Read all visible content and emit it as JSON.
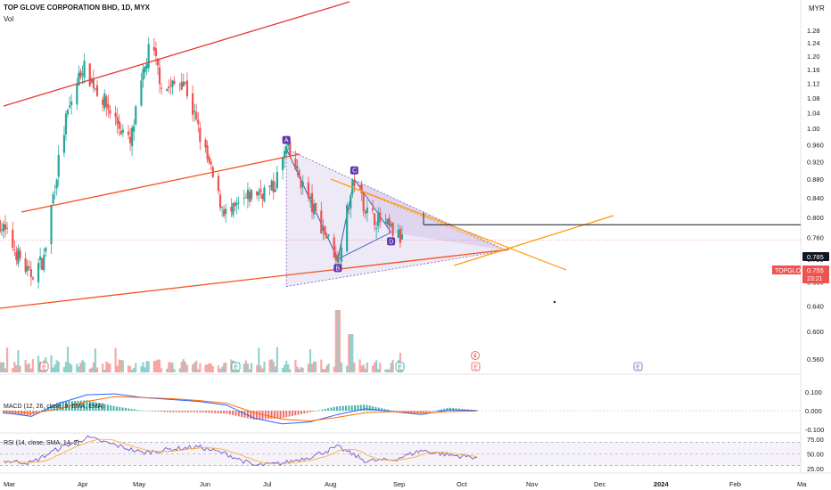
{
  "header": {
    "title": "TOP GLOVE CORPORATION BHD, 1D, MYX",
    "vol_label": "Vol",
    "currency": "MYR"
  },
  "price_tag": {
    "symbol": "TOPGLOV",
    "price": "0.755",
    "countdown": "23:21",
    "line_value": "0.785"
  },
  "pattern_labels": [
    "A",
    "B",
    "C",
    "D"
  ],
  "event_markers": [
    "E",
    "E",
    "E",
    "E",
    "E"
  ],
  "colors": {
    "up": "#26a69a",
    "down": "#ef5350",
    "channel": "#e53935",
    "orange": "#ff9800",
    "pattern_fill": "#b39ddb",
    "pattern_line": "#7e57c2",
    "macd": "#2962ff",
    "signal": "#ff6d00",
    "rsi": "#7e57c2"
  },
  "chart_data": [
    {
      "type": "candlestick",
      "title": "TOP GLOVE CORPORATION BHD, 1D, MYX",
      "x_ticks": [
        "Mar",
        "Apr",
        "May",
        "Jun",
        "Jul",
        "Aug",
        "Sep",
        "Oct",
        "Nov",
        "Dec",
        "2024",
        "Feb",
        "Ma"
      ],
      "y_ticks": [
        "0.560",
        "0.600",
        "0.640",
        "0.680",
        "0.720",
        "0.760",
        "0.800",
        "0.840",
        "0.880",
        "0.920",
        "0.960",
        "1.00",
        "1.04",
        "1.08",
        "1.12",
        "1.16",
        "1.20",
        "1.24",
        "1.28"
      ],
      "ylim": [
        0.54,
        1.3
      ],
      "y_scale": "log",
      "last_price": 0.755,
      "key_points": [
        {
          "date": "Feb 24",
          "close": 0.8
        },
        {
          "date": "Mar 14",
          "close": 0.69
        },
        {
          "date": "Mar 22",
          "close": 0.72
        },
        {
          "date": "Apr 3",
          "close": 1.02
        },
        {
          "date": "Apr 12",
          "close": 1.17
        },
        {
          "date": "Apr 25",
          "close": 1.06
        },
        {
          "date": "May 8",
          "close": 0.96
        },
        {
          "date": "May 19",
          "close": 1.24
        },
        {
          "date": "May 26",
          "close": 1.1
        },
        {
          "date": "Jun 6",
          "close": 1.13
        },
        {
          "date": "Jun 15",
          "close": 0.98
        },
        {
          "date": "Jun 25",
          "close": 0.84
        },
        {
          "date": "Jun 30",
          "close": 0.8
        },
        {
          "date": "Jul 14",
          "close": 0.85
        },
        {
          "date": "Jul 25",
          "close": 0.86
        },
        {
          "date": "Aug 1",
          "close": 0.95
        },
        {
          "date": "Aug 15",
          "close": 0.82
        },
        {
          "date": "Aug 29",
          "close": 0.72
        },
        {
          "date": "Sep 7",
          "close": 0.88
        },
        {
          "date": "Sep 14",
          "close": 0.81
        },
        {
          "date": "Sep 25",
          "close": 0.78
        },
        {
          "date": "Oct 3",
          "close": 0.755
        }
      ],
      "harmonic_points": [
        {
          "label": "A",
          "date": "Aug 1",
          "value": 0.95
        },
        {
          "label": "B",
          "date": "Aug 29",
          "value": 0.72
        },
        {
          "label": "C",
          "date": "Sep 7",
          "value": 0.88
        },
        {
          "label": "D",
          "date": "Sep 27",
          "value": 0.77
        }
      ],
      "horizontal_line": 0.785,
      "volume_label": "Vol"
    },
    {
      "type": "line",
      "title": "MACD (12, 26, close, 9, EMA, EMA)",
      "y_ticks": [
        "0.100",
        "0.000",
        "-0.100"
      ],
      "ylim": [
        -0.12,
        0.12
      ],
      "series": [
        {
          "name": "MACD",
          "values": [
            -0.01,
            -0.03,
            0.04,
            0.085,
            0.09,
            0.07,
            0.06,
            0.05,
            0.03,
            -0.04,
            -0.07,
            -0.06,
            -0.02,
            0.01,
            -0.005,
            -0.02,
            0.005,
            0.0
          ]
        },
        {
          "name": "Signal",
          "values": [
            0.0,
            -0.015,
            0.01,
            0.05,
            0.075,
            0.07,
            0.065,
            0.055,
            0.04,
            -0.01,
            -0.045,
            -0.055,
            -0.035,
            -0.01,
            -0.005,
            -0.012,
            -0.005,
            -0.002
          ]
        }
      ]
    },
    {
      "type": "line",
      "title": "RSI (14, close, SMA, 14, 2)",
      "y_ticks": [
        "75.00",
        "50.00",
        "25.00"
      ],
      "ylim": [
        15,
        85
      ],
      "levels": [
        70,
        30
      ],
      "series": [
        {
          "name": "RSI",
          "values": [
            38,
            35,
            60,
            78,
            65,
            52,
            58,
            62,
            50,
            30,
            34,
            45,
            62,
            38,
            40,
            56,
            48,
            44
          ]
        }
      ]
    }
  ]
}
